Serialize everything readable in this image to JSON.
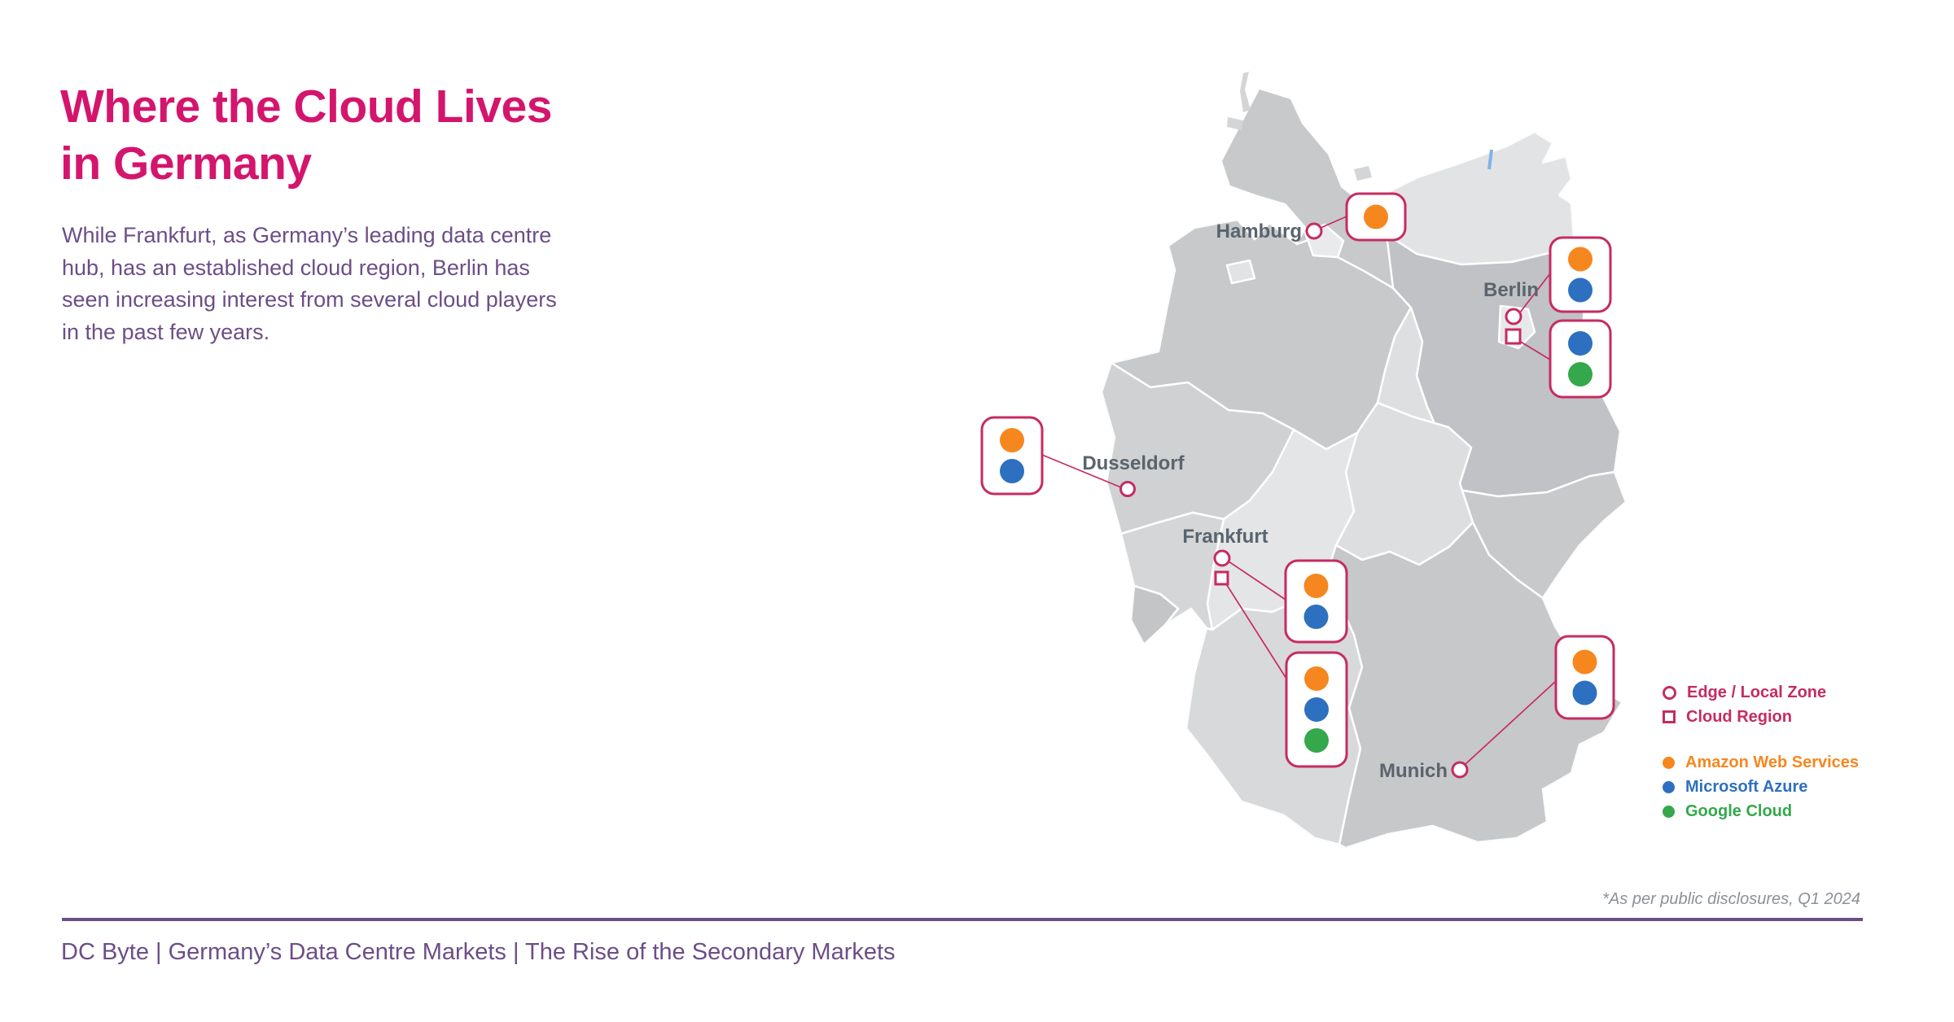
{
  "title": {
    "line1": "Where the Cloud Lives",
    "line2": "in Germany"
  },
  "body": {
    "lines": [
      "While Frankfurt, as Germany’s leading data centre",
      "hub, has an established cloud region, Berlin has",
      "seen increasing interest from several cloud players",
      "in the past few years."
    ]
  },
  "map": {
    "cities": [
      {
        "name": "Hamburg",
        "markers": [
          "edge"
        ],
        "badges": [
          {
            "type": "edge",
            "providers": [
              "aws"
            ]
          }
        ]
      },
      {
        "name": "Berlin",
        "markers": [
          "edge",
          "region"
        ],
        "badges": [
          {
            "type": "edge",
            "providers": [
              "aws",
              "azure"
            ]
          },
          {
            "type": "region",
            "providers": [
              "azure",
              "google"
            ]
          }
        ]
      },
      {
        "name": "Dusseldorf",
        "markers": [
          "edge"
        ],
        "badges": [
          {
            "type": "edge",
            "providers": [
              "aws",
              "azure"
            ]
          }
        ]
      },
      {
        "name": "Frankfurt",
        "markers": [
          "edge",
          "region"
        ],
        "badges": [
          {
            "type": "edge",
            "providers": [
              "aws",
              "azure"
            ]
          },
          {
            "type": "region",
            "providers": [
              "aws",
              "azure",
              "google"
            ]
          }
        ]
      },
      {
        "name": "Munich",
        "markers": [
          "edge"
        ],
        "badges": [
          {
            "type": "edge",
            "providers": [
              "aws",
              "azure"
            ]
          }
        ]
      }
    ]
  },
  "legend": {
    "marker_types": [
      {
        "shape": "circle",
        "label": "Edge / Local Zone"
      },
      {
        "shape": "square",
        "label": "Cloud Region"
      }
    ],
    "providers": [
      {
        "key": "aws",
        "label": "Amazon Web Services"
      },
      {
        "key": "azure",
        "label": "Microsoft Azure"
      },
      {
        "key": "google",
        "label": "Google Cloud"
      }
    ]
  },
  "footnote": "*As per public disclosures, Q1 2024",
  "footer": "DC Byte | Germany’s Data Centre Markets | The Rise of the Secondary Markets",
  "colors": {
    "accent_pink": "#D4156D",
    "crimson": "#C62B62",
    "purple": "#6C4E87",
    "city_label": "#5A646E",
    "footnote_gray": "#8A9199",
    "providers": {
      "aws": "#F6871F",
      "azure": "#2E70C0",
      "google": "#34A84B"
    }
  }
}
